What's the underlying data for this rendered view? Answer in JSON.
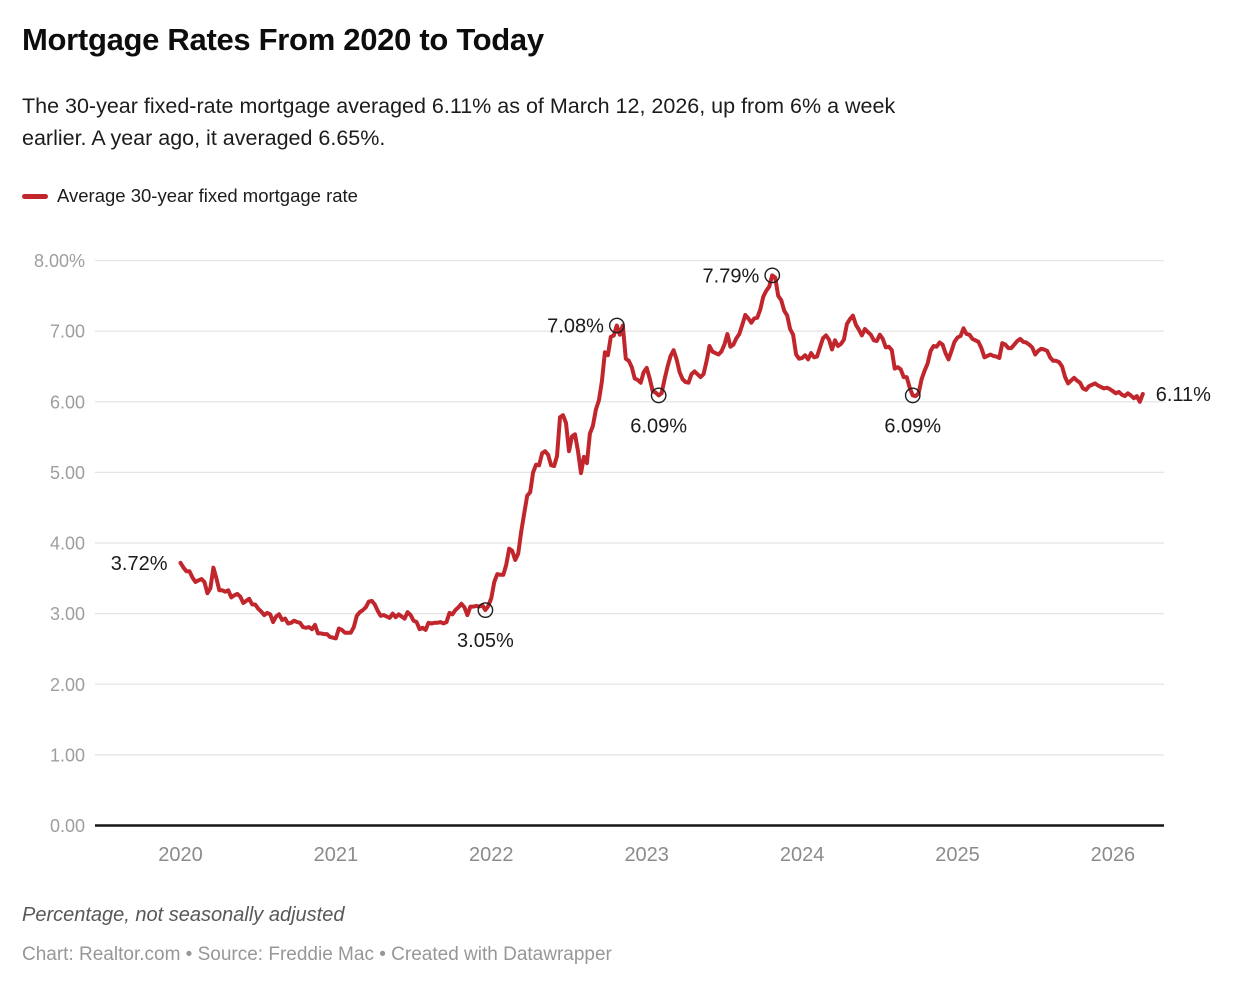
{
  "header": {
    "title": "Mortgage Rates From 2020 to Today",
    "subtitle_line1": "The 30-year fixed-rate mortgage averaged 6.11% as of March 12, 2026, up from 6% a week",
    "subtitle_line2": "earlier. A year ago, it averaged 6.65%.",
    "legend": {
      "label": "Average 30-year fixed mortgage rate",
      "swatch_color": "#c0262c"
    }
  },
  "footer": {
    "note": "Percentage, not seasonally adjusted",
    "credits": "Chart: Realtor.com • Source: Freddie Mac • Created with Datawrapper"
  },
  "chart_data": {
    "type": "line",
    "title": "Mortgage Rates From 2020 to Today",
    "series_name": "Average 30-year fixed mortgage rate",
    "line_color": "#c0262c",
    "grid_color": "#e4e4e4",
    "baseline_color": "#161616",
    "y_tick_color": "#9e9e9e",
    "x_tick_color": "#8b8b8b",
    "annotation_color": "#1b1b1b",
    "grid_on": true,
    "legend_position": "top-left",
    "x_axis": {
      "label": "",
      "range": [
        2019.45,
        2026.38
      ],
      "ticks": [
        {
          "value": 2020,
          "label": "2020"
        },
        {
          "value": 2021,
          "label": "2021"
        },
        {
          "value": 2022,
          "label": "2022"
        },
        {
          "value": 2023,
          "label": "2023"
        },
        {
          "value": 2024,
          "label": "2024"
        },
        {
          "value": 2025,
          "label": "2025"
        },
        {
          "value": 2026,
          "label": "2026"
        }
      ]
    },
    "y_axis": {
      "label": "Percentage, not seasonally adjusted",
      "range": [
        0,
        8
      ],
      "ticks": [
        {
          "value": 8,
          "label": "8.00%"
        },
        {
          "value": 7,
          "label": "7.00"
        },
        {
          "value": 6,
          "label": "6.00"
        },
        {
          "value": 5,
          "label": "5.00"
        },
        {
          "value": 4,
          "label": "4.00"
        },
        {
          "value": 3,
          "label": "3.00"
        },
        {
          "value": 2,
          "label": "2.00"
        },
        {
          "value": 1,
          "label": "1.00"
        },
        {
          "value": 0,
          "label": "0.00"
        }
      ]
    },
    "start_year": 2020,
    "samples_per_year": 52,
    "values": [
      3.72,
      3.65,
      3.6,
      3.6,
      3.51,
      3.45,
      3.47,
      3.49,
      3.45,
      3.29,
      3.36,
      3.65,
      3.5,
      3.33,
      3.33,
      3.31,
      3.33,
      3.23,
      3.26,
      3.28,
      3.24,
      3.15,
      3.18,
      3.21,
      3.13,
      3.13,
      3.07,
      3.03,
      2.98,
      3.01,
      2.99,
      2.88,
      2.96,
      2.99,
      2.91,
      2.93,
      2.86,
      2.87,
      2.9,
      2.88,
      2.87,
      2.81,
      2.8,
      2.81,
      2.78,
      2.84,
      2.72,
      2.72,
      2.71,
      2.71,
      2.67,
      2.66,
      2.65,
      2.79,
      2.77,
      2.73,
      2.73,
      2.73,
      2.81,
      2.97,
      3.02,
      3.05,
      3.09,
      3.17,
      3.18,
      3.13,
      3.04,
      2.97,
      2.98,
      2.96,
      2.94,
      3.0,
      2.95,
      2.99,
      2.96,
      2.93,
      3.02,
      2.98,
      2.9,
      2.88,
      2.78,
      2.8,
      2.77,
      2.87,
      2.86,
      2.87,
      2.87,
      2.88,
      2.86,
      2.88,
      3.01,
      2.99,
      3.05,
      3.09,
      3.14,
      3.09,
      2.98,
      3.1,
      3.1,
      3.11,
      3.1,
      3.12,
      3.05,
      3.11,
      3.22,
      3.45,
      3.56,
      3.55,
      3.55,
      3.69,
      3.92,
      3.89,
      3.76,
      3.85,
      4.16,
      4.42,
      4.67,
      4.72,
      5.0,
      5.11,
      5.1,
      5.27,
      5.3,
      5.25,
      5.1,
      5.09,
      5.23,
      5.78,
      5.81,
      5.7,
      5.3,
      5.51,
      5.54,
      5.3,
      4.99,
      5.22,
      5.13,
      5.55,
      5.66,
      5.89,
      6.02,
      6.29,
      6.7,
      6.66,
      6.92,
      6.94,
      7.08,
      6.95,
      7.08,
      6.61,
      6.58,
      6.49,
      6.33,
      6.31,
      6.27,
      6.42,
      6.48,
      6.33,
      6.15,
      6.13,
      6.09,
      6.12,
      6.32,
      6.5,
      6.65,
      6.73,
      6.6,
      6.42,
      6.32,
      6.28,
      6.27,
      6.39,
      6.43,
      6.39,
      6.35,
      6.39,
      6.57,
      6.79,
      6.71,
      6.69,
      6.67,
      6.71,
      6.81,
      6.96,
      6.78,
      6.81,
      6.9,
      6.96,
      7.09,
      7.23,
      7.18,
      7.12,
      7.18,
      7.19,
      7.31,
      7.49,
      7.57,
      7.63,
      7.79,
      7.76,
      7.5,
      7.44,
      7.29,
      7.22,
      7.03,
      6.95,
      6.67,
      6.61,
      6.62,
      6.66,
      6.6,
      6.69,
      6.63,
      6.64,
      6.77,
      6.9,
      6.94,
      6.88,
      6.74,
      6.87,
      6.79,
      6.82,
      6.88,
      7.1,
      7.17,
      7.22,
      7.09,
      7.02,
      6.94,
      7.03,
      6.99,
      6.95,
      6.87,
      6.86,
      6.95,
      6.89,
      6.77,
      6.78,
      6.73,
      6.47,
      6.49,
      6.46,
      6.35,
      6.35,
      6.2,
      6.09,
      6.08,
      6.12,
      6.32,
      6.44,
      6.54,
      6.72,
      6.79,
      6.78,
      6.84,
      6.81,
      6.69,
      6.6,
      6.72,
      6.85,
      6.91,
      6.93,
      7.04,
      6.96,
      6.95,
      6.89,
      6.87,
      6.85,
      6.76,
      6.63,
      6.65,
      6.67,
      6.65,
      6.64,
      6.62,
      6.83,
      6.81,
      6.76,
      6.76,
      6.81,
      6.86,
      6.89,
      6.85,
      6.84,
      6.81,
      6.77,
      6.67,
      6.72,
      6.75,
      6.74,
      6.72,
      6.63,
      6.58,
      6.58,
      6.56,
      6.5,
      6.35,
      6.26,
      6.3,
      6.34,
      6.3,
      6.27,
      6.19,
      6.17,
      6.22,
      6.24,
      6.26,
      6.23,
      6.21,
      6.19,
      6.2,
      6.18,
      6.15,
      6.12,
      6.14,
      6.1,
      6.08,
      6.12,
      6.09,
      6.05,
      6.08,
      6.0,
      6.11
    ],
    "annotations": [
      {
        "label": "3.72%",
        "t": 2020.0,
        "v": 3.72,
        "placement": "left",
        "circle": false
      },
      {
        "label": "3.05%",
        "t": 2021.962,
        "v": 3.05,
        "placement": "below",
        "circle": true
      },
      {
        "label": "7.08%",
        "t": 2022.808,
        "v": 7.08,
        "placement": "left",
        "circle": true
      },
      {
        "label": "6.09%",
        "t": 2023.077,
        "v": 6.09,
        "placement": "below",
        "circle": true
      },
      {
        "label": "7.79%",
        "t": 2023.808,
        "v": 7.79,
        "placement": "left",
        "circle": true
      },
      {
        "label": "6.09%",
        "t": 2024.712,
        "v": 6.09,
        "placement": "below",
        "circle": true
      },
      {
        "label": "6.11%",
        "t": 2026.192,
        "v": 6.11,
        "placement": "right",
        "circle": false
      }
    ]
  }
}
